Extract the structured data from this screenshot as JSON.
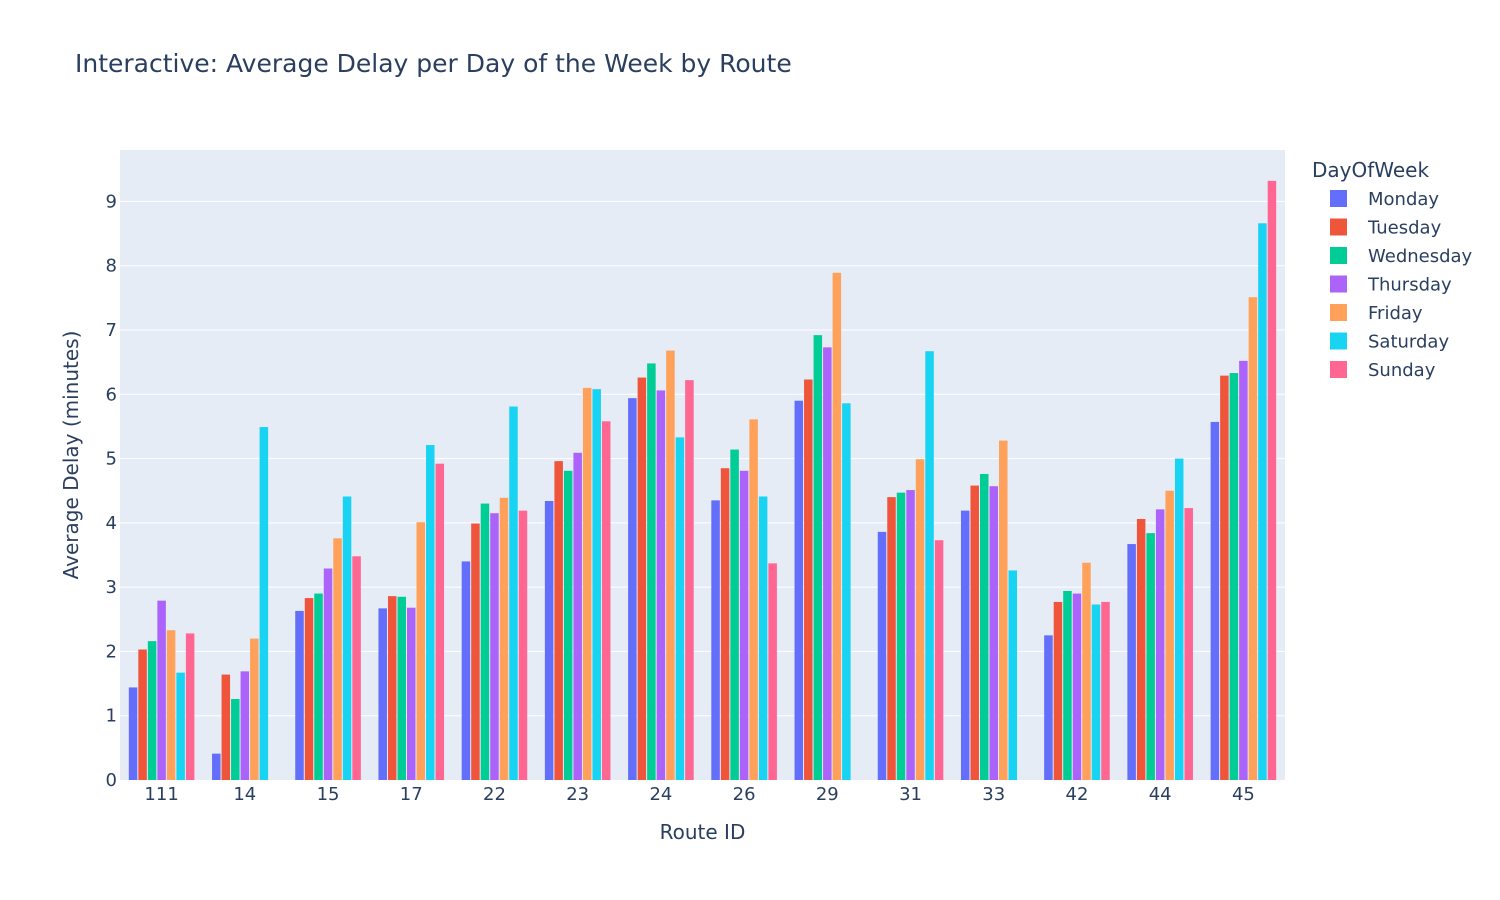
{
  "chart_data": {
    "type": "bar",
    "title": "Interactive: Average Delay per Day of the Week by Route",
    "xlabel": "Route ID",
    "ylabel": "Average Delay (minutes)",
    "ylim": [
      0,
      9.8
    ],
    "yticks": [
      0,
      1,
      2,
      3,
      4,
      5,
      6,
      7,
      8,
      9
    ],
    "grid": true,
    "legend_title": "DayOfWeek",
    "legend_position": "top-right",
    "categories": [
      "111",
      "14",
      "15",
      "17",
      "22",
      "23",
      "24",
      "26",
      "29",
      "31",
      "33",
      "42",
      "44",
      "45"
    ],
    "series": [
      {
        "name": "Monday",
        "color": "#636efa",
        "values": [
          1.44,
          0.41,
          2.63,
          2.67,
          3.4,
          4.34,
          5.94,
          4.35,
          5.9,
          3.86,
          4.19,
          2.25,
          3.67,
          5.57
        ]
      },
      {
        "name": "Tuesday",
        "color": "#ef553b",
        "values": [
          2.03,
          1.64,
          2.83,
          2.86,
          3.99,
          4.96,
          6.26,
          4.85,
          6.23,
          4.4,
          4.58,
          2.77,
          4.06,
          6.29
        ]
      },
      {
        "name": "Wednesday",
        "color": "#00cc96",
        "values": [
          2.16,
          1.26,
          2.9,
          2.85,
          4.3,
          4.81,
          6.48,
          5.14,
          6.92,
          4.47,
          4.76,
          2.94,
          3.84,
          6.33
        ]
      },
      {
        "name": "Thursday",
        "color": "#ab63fa",
        "values": [
          2.79,
          1.69,
          3.29,
          2.68,
          4.15,
          5.09,
          6.06,
          4.81,
          6.73,
          4.51,
          4.57,
          2.9,
          4.21,
          6.52
        ]
      },
      {
        "name": "Friday",
        "color": "#ffa15a",
        "values": [
          2.33,
          2.2,
          3.76,
          4.01,
          4.39,
          6.1,
          6.68,
          5.61,
          7.89,
          4.99,
          5.28,
          3.38,
          4.5,
          7.51
        ]
      },
      {
        "name": "Saturday",
        "color": "#19d3f3",
        "values": [
          1.67,
          5.49,
          4.41,
          5.21,
          5.81,
          6.08,
          5.33,
          4.41,
          5.86,
          6.67,
          3.26,
          2.73,
          5.0,
          8.66
        ]
      },
      {
        "name": "Sunday",
        "color": "#ff6692",
        "values": [
          2.28,
          null,
          3.48,
          4.92,
          4.19,
          5.58,
          6.22,
          3.37,
          null,
          3.73,
          null,
          2.77,
          4.23,
          9.32
        ]
      }
    ],
    "colors": {
      "plot_bg": "#e5ecf6",
      "grid": "#ffffff",
      "text": "#2a3f5f"
    }
  }
}
